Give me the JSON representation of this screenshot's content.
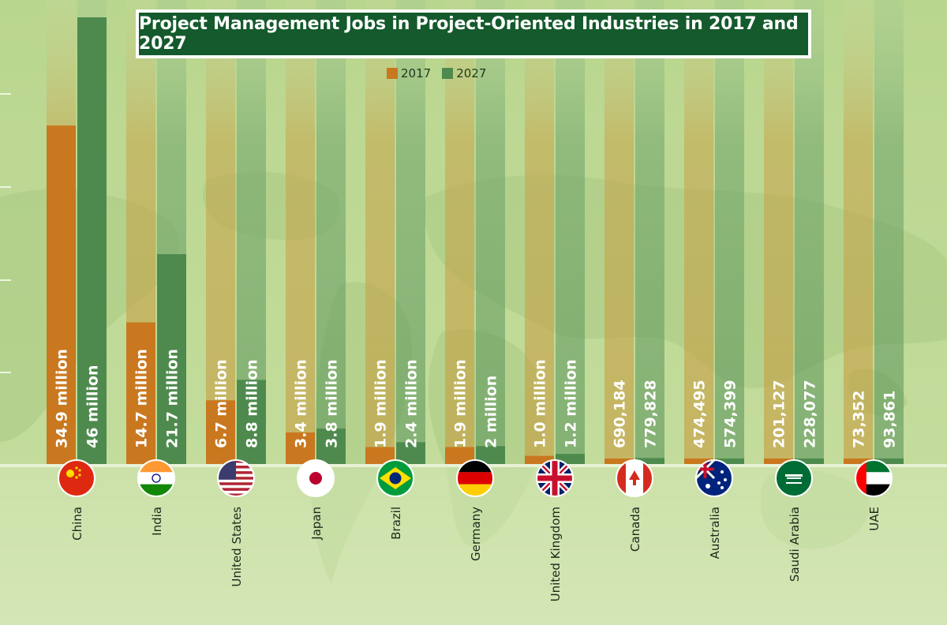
{
  "chart_data": {
    "type": "bar",
    "title": "Project Management Jobs in Project-Oriented Industries in 2017 and 2027",
    "categories": [
      "China",
      "India",
      "United States",
      "Japan",
      "Brazil",
      "Germany",
      "United Kingdom",
      "Canada",
      "Australia",
      "Saudi Arabia",
      "UAE"
    ],
    "series": [
      {
        "name": "2017",
        "color": "#c9781f",
        "values": [
          34.9,
          14.7,
          6.7,
          3.4,
          1.9,
          1.9,
          1.0,
          0.690184,
          0.474495,
          0.201127,
          0.073352
        ],
        "labels": [
          "34.9 million",
          "14.7 million",
          "6.7 million",
          "3.4 million",
          "1.9 million",
          "1.9 million",
          "1.0 million",
          "690,184",
          "474,495",
          "201,127",
          "73,352"
        ]
      },
      {
        "name": "2027",
        "color": "#4e8a4e",
        "values": [
          46,
          21.7,
          8.8,
          3.8,
          2.4,
          2.0,
          1.2,
          0.779828,
          0.574399,
          0.228077,
          0.093861
        ],
        "labels": [
          "46 million",
          "21.7 million",
          "8.8 million",
          "3.8 million",
          "2.4 million",
          "2 million",
          "1.2 million",
          "779,828",
          "574,399",
          "228,077",
          "93,861"
        ]
      }
    ],
    "flag_icons": [
      "china-flag-icon",
      "india-flag-icon",
      "united-states-flag-icon",
      "japan-flag-icon",
      "brazil-flag-icon",
      "germany-flag-icon",
      "united-kingdom-flag-icon",
      "canada-flag-icon",
      "australia-flag-icon",
      "saudi-arabia-flag-icon",
      "uae-flag-icon"
    ],
    "legend_placement": "top-center",
    "xlabel": "",
    "ylabel": ""
  }
}
